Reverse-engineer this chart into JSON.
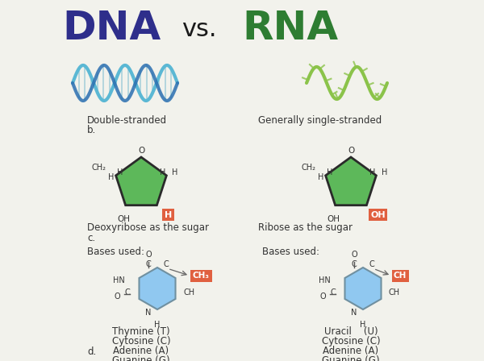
{
  "title_dna": "DNA",
  "title_vs": "vs.",
  "title_rna": "RNA",
  "title_dna_color": "#2E2E8B",
  "title_vs_color": "#1a1a1a",
  "title_rna_color": "#2E7D32",
  "title_dna_fontsize": 36,
  "title_vs_fontsize": 22,
  "title_rna_fontsize": 36,
  "bg_color": "#F2F2EC",
  "dna_helix_color1": "#5BB8D4",
  "dna_helix_color2": "#2A6FB0",
  "rna_helix_color": "#8BC34A",
  "sugar_fill_color": "#5DB85A",
  "sugar_edge_color": "#2a2a2a",
  "highlight_color": "#E06040",
  "base_ring_color": "#90C8F0",
  "label_dna_strand": "Double-stranded",
  "label_rna_strand": "Generally single-stranded",
  "label_b": "b.",
  "label_dna_sugar": "Deoxyribose as the sugar",
  "label_rna_sugar": "Ribose as the sugar",
  "label_c": "c.",
  "label_bases_used": "Bases used:",
  "label_dna_h_highlight": "H",
  "label_rna_oh_highlight": "OH",
  "label_dna_ch3": "CH₃",
  "label_rna_ch": "CH",
  "dna_bases": [
    "Thymine (T)",
    "Cytosine (C)",
    "Adenine (A)",
    "Guanine (G)"
  ],
  "rna_bases": [
    "Uracil    (U)",
    "Cytosine (C)",
    "Adenine (A)",
    "Guanine (G)"
  ],
  "label_d": "d.",
  "label_fontsize": 8.5
}
